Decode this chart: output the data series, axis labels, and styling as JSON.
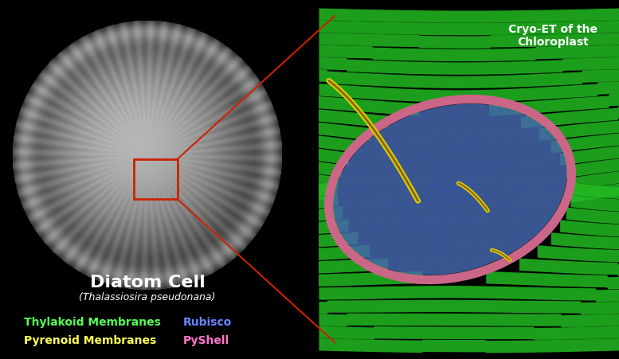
{
  "bg_color": "#000000",
  "fig_width": 7.77,
  "fig_height": 4.51,
  "diatom_cell_label": "Diatom Cell",
  "diatom_cell_sublabel": "(Thalassiosira pseudonana)",
  "cryo_et_label": "Cryo-ET of the\nChloroplast",
  "legend": [
    {
      "text": "Thylakoid Membranes",
      "color": "#55ff55"
    },
    {
      "text": "Rubisco",
      "color": "#6688ff"
    },
    {
      "text": "Pyrenoid Membranes",
      "color": "#ffff55"
    },
    {
      "text": "PyShell",
      "color": "#ff77cc"
    }
  ],
  "red_line_color": "#cc2200",
  "cell_color_dark": "#111111",
  "cell_color_light": "#cccccc",
  "green_thylakoid": "#22bb22",
  "blue_rubisco": "#4466aa",
  "pink_pyshell": "#cc6688",
  "yellow_pyrenoid": "#ddcc00"
}
